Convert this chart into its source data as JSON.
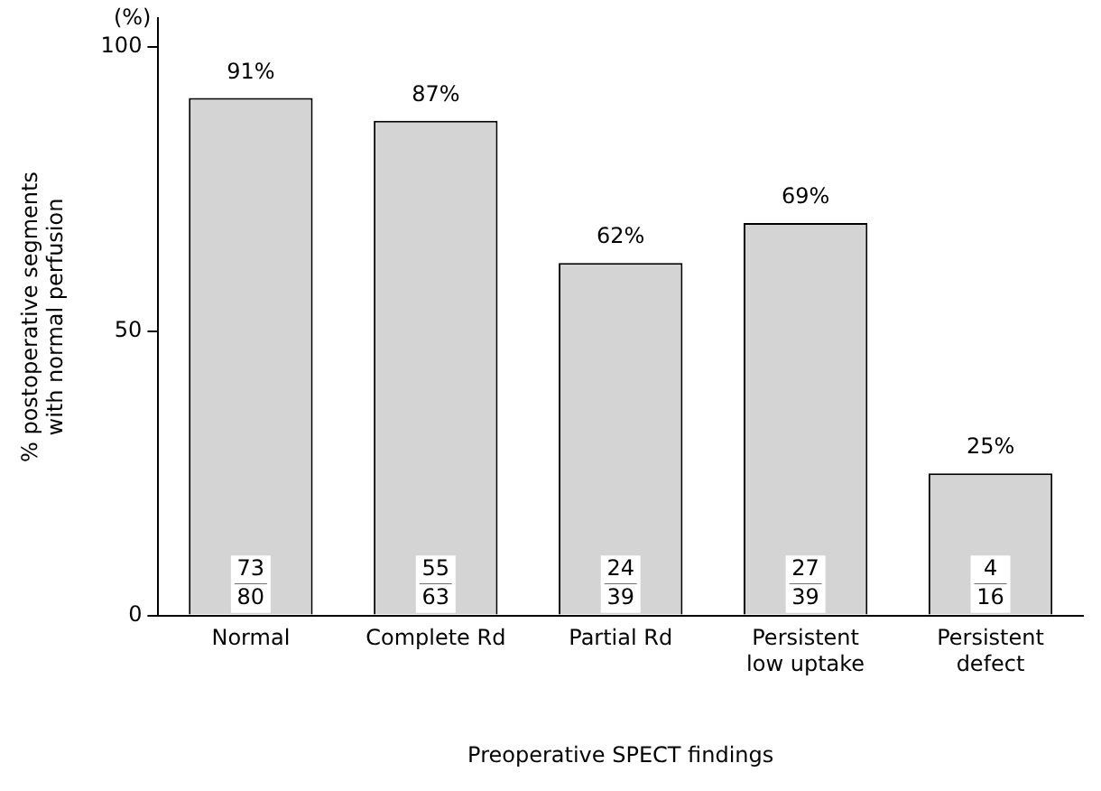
{
  "chart_data": {
    "type": "bar",
    "xlabel": "Preoperative SPECT findings",
    "ylabel": "% postoperative segments with normal perfusion",
    "categories": [
      "Normal",
      "Complete Rd",
      "Partial Rd",
      "Persistent low uptake",
      "Persistent defect"
    ],
    "values": [
      91,
      87,
      62,
      69,
      25
    ],
    "color": "#d4d4d4",
    "value_labels": [
      "91%",
      "87%",
      "62%",
      "69%",
      "25%"
    ],
    "ylim": [
      0,
      105
    ],
    "yticks": [
      0,
      50,
      100
    ],
    "grid": false,
    "legend": false,
    "annotations": [
      "(%)",
      {
        "text": "73",
        "x": "Normal",
        "y": 8
      },
      {
        "text": "80",
        "x": "Normal",
        "y": 3
      },
      {
        "text": "55",
        "x": "Complete Rd",
        "y": 8
      },
      {
        "text": "63",
        "x": "Complete Rd",
        "y": 3
      },
      {
        "text": "24",
        "x": "Partial Rd",
        "y": 8
      },
      {
        "text": "39",
        "x": "Partial Rd",
        "y": 3
      },
      {
        "text": "27",
        "x": "Persistent low uptake",
        "y": 8
      },
      {
        "text": "39",
        "x": "Persistent low uptake",
        "y": 3
      },
      {
        "text": "4",
        "x": "Persistent defect",
        "y": 8
      },
      {
        "text": "16",
        "x": "Persistent defect",
        "y": 3
      }
    ]
  }
}
